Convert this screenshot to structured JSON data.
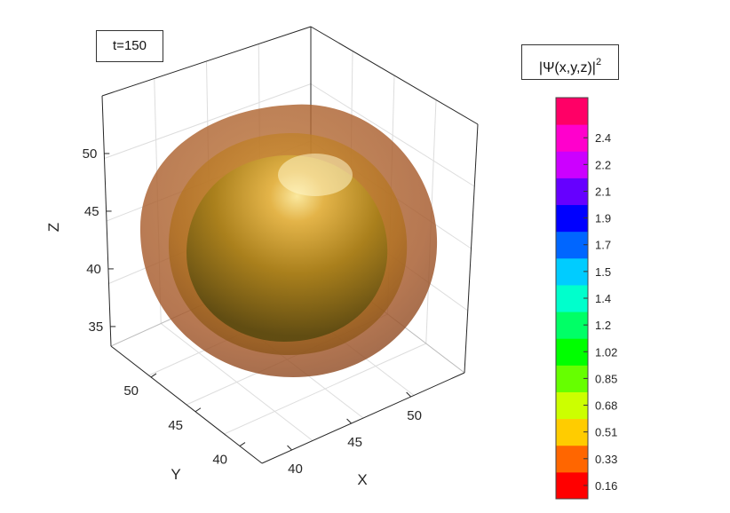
{
  "chart_data": {
    "type": "isosurface-3d",
    "annotation": "t=150",
    "xlabel": "X",
    "ylabel": "Y",
    "zlabel": "Z",
    "xticks": [
      40,
      45,
      50
    ],
    "yticks": [
      40,
      45,
      50
    ],
    "zticks": [
      35,
      40,
      45,
      50
    ],
    "colorbar": {
      "title_main": "|Ψ(x,y,z)|",
      "title_sup": "2",
      "levels": [
        {
          "label": "0.16",
          "color": "#ff0000"
        },
        {
          "label": "0.33",
          "color": "#ff6600"
        },
        {
          "label": "0.51",
          "color": "#ffcc00"
        },
        {
          "label": "0.68",
          "color": "#ccff00"
        },
        {
          "label": "0.85",
          "color": "#66ff00"
        },
        {
          "label": "1.02",
          "color": "#00ff00"
        },
        {
          "label": "1.2",
          "color": "#00ff66"
        },
        {
          "label": "1.4",
          "color": "#00ffcc"
        },
        {
          "label": "1.5",
          "color": "#00ccff"
        },
        {
          "label": "1.7",
          "color": "#0066ff"
        },
        {
          "label": "1.9",
          "color": "#0000ff"
        },
        {
          "label": "2.1",
          "color": "#6600ff"
        },
        {
          "label": "2.2",
          "color": "#cc00ff"
        },
        {
          "label": "2.4",
          "color": "#ff00cc"
        },
        {
          "label": "",
          "color": "#ff0066"
        }
      ]
    },
    "surfaces": [
      {
        "level": "0.16",
        "color": "#a8582a",
        "opacity": 0.82
      },
      {
        "level": "0.33",
        "color": "#b86c1e",
        "opacity": 0.75
      },
      {
        "level": "0.51",
        "color": "#c98e14",
        "opacity": 0.9
      }
    ]
  }
}
